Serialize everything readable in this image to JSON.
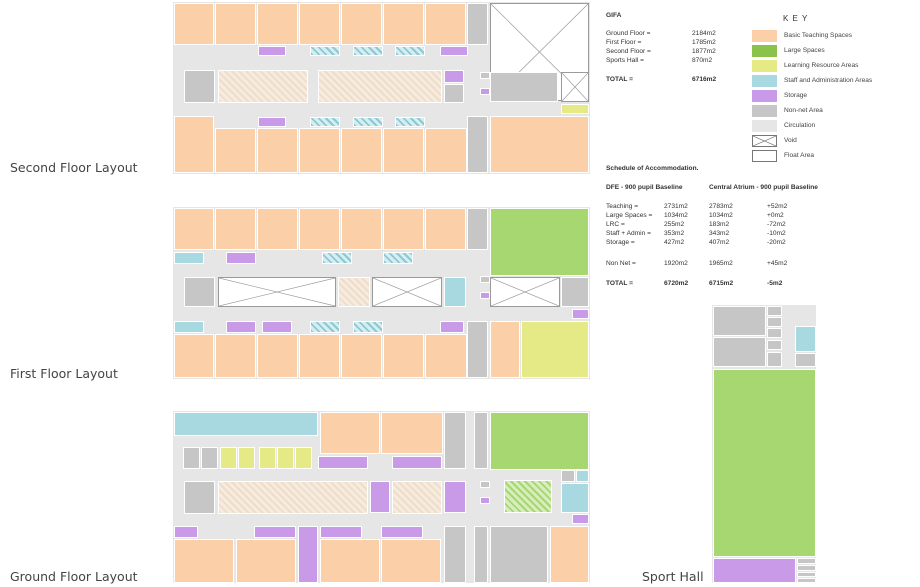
{
  "floor_labels": {
    "second": "Second Floor Layout",
    "first": "First Floor Layout",
    "ground": "Ground Floor Layout",
    "sports": "Sport Hall"
  },
  "gifa": {
    "title": "GIFA",
    "rows": [
      {
        "label": "Ground Floor =",
        "value": "2184m2"
      },
      {
        "label": "First Floor =",
        "value": "1785m2"
      },
      {
        "label": "Second Floor =",
        "value": "1877m2"
      },
      {
        "label": "Sports Hall =",
        "value": "870m2"
      }
    ],
    "total_label": "TOTAL =",
    "total_value": "6716m2"
  },
  "key": {
    "title": "K E Y",
    "items": [
      {
        "label": "Basic Teaching Spaces",
        "color": "#fbd0a8"
      },
      {
        "label": "Large Spaces",
        "color": "#8bc34a"
      },
      {
        "label": "Learning Resource Areas",
        "color": "#e6ea86"
      },
      {
        "label": "Staff and Administration Areas",
        "color": "#a8d8e0"
      },
      {
        "label": "Storage",
        "color": "#c99ae8"
      },
      {
        "label": "Non-net Area",
        "color": "#c6c6c6"
      },
      {
        "label": "Circulation",
        "color": "#e6e6e6"
      },
      {
        "label": "Void",
        "color": "#ffffff"
      },
      {
        "label": "Float Area",
        "color": "#ffffff"
      }
    ]
  },
  "schedule": {
    "title": "Schedule of Accommodation.",
    "col1_header": "DFE - 900 pupil Baseline",
    "col2_header": "Central Atrium - 900 pupil Baseline",
    "rows": [
      {
        "label": "Teaching =",
        "dfe": "2731m2",
        "atrium": "2783m2",
        "diff": "+52m2"
      },
      {
        "label": "Large Spaces =",
        "dfe": "1034m2",
        "atrium": "1034m2",
        "diff": "+0m2"
      },
      {
        "label": "LRC =",
        "dfe": "255m2",
        "atrium": "183m2",
        "diff": "-72m2"
      },
      {
        "label": "Staff + Admin =",
        "dfe": "353m2",
        "atrium": "343m2",
        "diff": "-10m2"
      },
      {
        "label": "Storage =",
        "dfe": "427m2",
        "atrium": "407m2",
        "diff": "-20m2"
      }
    ],
    "nonnet": {
      "label": "Non Net =",
      "dfe": "1920m2",
      "atrium": "1965m2",
      "diff": "+45m2"
    },
    "total": {
      "label": "TOTAL =",
      "dfe": "6720m2",
      "atrium": "6715m2",
      "diff": "-5m2"
    }
  }
}
